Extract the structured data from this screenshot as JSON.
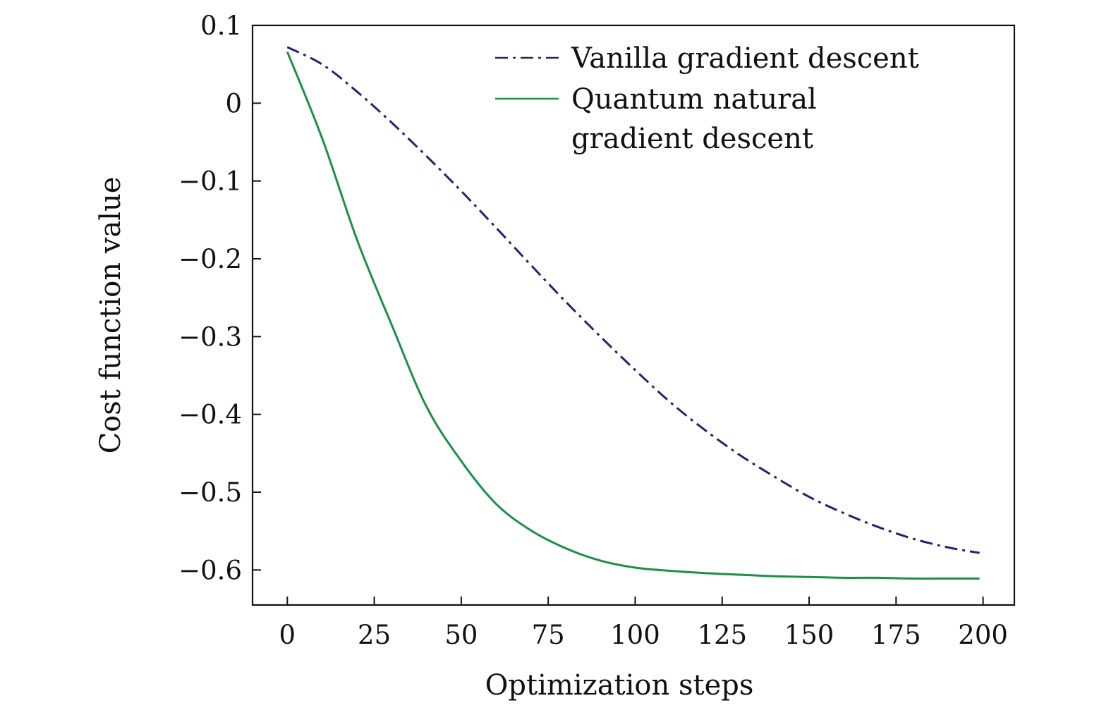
{
  "chart_data": {
    "type": "line",
    "title": "",
    "xlabel": "Optimization steps",
    "ylabel": "Cost function value",
    "xlim": [
      -10,
      209
    ],
    "ylim": [
      -0.645,
      0.1
    ],
    "xticks": [
      0,
      25,
      50,
      75,
      100,
      125,
      150,
      175,
      200
    ],
    "xtick_labels": [
      "0",
      "25",
      "50",
      "75",
      "100",
      "125",
      "150",
      "175",
      "200"
    ],
    "yticks": [
      0.1,
      0,
      -0.1,
      -0.2,
      -0.3,
      -0.4,
      -0.5,
      -0.6
    ],
    "ytick_labels": [
      "0.1",
      "0",
      "−0.1",
      "−0.2",
      "−0.3",
      "−0.4",
      "−0.5",
      "−0.6"
    ],
    "grid": false,
    "legend_position": "top-right",
    "series": [
      {
        "name": "Vanilla gradient descent",
        "color": "#1f2570",
        "dash": "dash-dot",
        "x": [
          0,
          10,
          20,
          30,
          40,
          50,
          60,
          70,
          80,
          90,
          100,
          110,
          120,
          130,
          140,
          150,
          160,
          170,
          180,
          190,
          199
        ],
        "y": [
          0.072,
          0.05,
          0.015,
          -0.025,
          -0.068,
          -0.113,
          -0.16,
          -0.208,
          -0.255,
          -0.3,
          -0.343,
          -0.384,
          -0.42,
          -0.452,
          -0.48,
          -0.506,
          -0.527,
          -0.545,
          -0.56,
          -0.571,
          -0.578
        ]
      },
      {
        "name": "Quantum natural gradient descent",
        "color": "#1a9048",
        "dash": "solid",
        "x": [
          0,
          10,
          20,
          30,
          40,
          50,
          60,
          70,
          80,
          90,
          100,
          110,
          120,
          130,
          140,
          150,
          160,
          170,
          180,
          190,
          199
        ],
        "y": [
          0.066,
          -0.045,
          -0.175,
          -0.285,
          -0.39,
          -0.46,
          -0.515,
          -0.549,
          -0.572,
          -0.588,
          -0.597,
          -0.601,
          -0.604,
          -0.606,
          -0.608,
          -0.609,
          -0.61,
          -0.61,
          -0.611,
          -0.611,
          -0.611
        ]
      }
    ],
    "legend_lines": [
      [
        "Vanilla gradient descent"
      ],
      [
        "Quantum natural",
        "gradient descent"
      ]
    ]
  }
}
